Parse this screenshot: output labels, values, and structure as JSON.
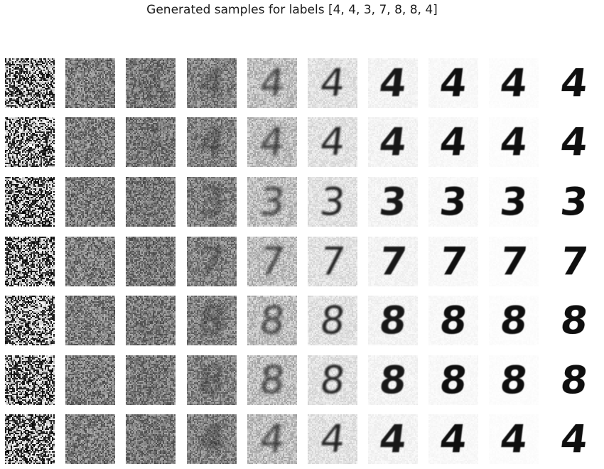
{
  "title": "Generated samples for labels [4, 4, 3, 7, 8, 8, 4]",
  "labels": [
    "4",
    "4",
    "3",
    "7",
    "8",
    "8",
    "4"
  ],
  "steps": 10
}
